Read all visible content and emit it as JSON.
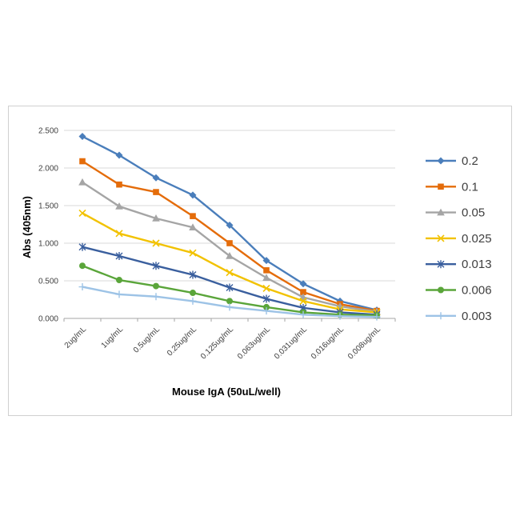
{
  "chart_data": {
    "type": "line",
    "title": "",
    "xlabel": "Mouse IgA (50uL/well)",
    "ylabel": "Abs (405nm)",
    "ylim": [
      0,
      2.5
    ],
    "yticks": [
      "0.000",
      "0.500",
      "1.000",
      "1.500",
      "2.000",
      "2.500"
    ],
    "grid": true,
    "legend_position": "right",
    "categories": [
      "2ug/mL",
      "1ug/mL",
      "0.5ug/mL",
      "0.25ug/mL",
      "0.125ug/mL",
      "0.063ug/mL",
      "0.031ug/mL",
      "0.016ug/mL",
      "0.008ug/mL"
    ],
    "series": [
      {
        "name": "0.2",
        "color": "#4a7ebb",
        "marker": "diamond",
        "values": [
          2.42,
          2.17,
          1.87,
          1.64,
          1.24,
          0.77,
          0.46,
          0.23,
          0.11
        ]
      },
      {
        "name": "0.1",
        "color": "#e46c0a",
        "marker": "square",
        "values": [
          2.09,
          1.78,
          1.68,
          1.36,
          1.0,
          0.64,
          0.35,
          0.19,
          0.1
        ]
      },
      {
        "name": "0.05",
        "color": "#a5a5a5",
        "marker": "triangle",
        "values": [
          1.81,
          1.49,
          1.33,
          1.21,
          0.83,
          0.54,
          0.28,
          0.16,
          0.09
        ]
      },
      {
        "name": "0.025",
        "color": "#f2c200",
        "marker": "x",
        "values": [
          1.4,
          1.13,
          1.0,
          0.87,
          0.61,
          0.4,
          0.23,
          0.12,
          0.08
        ]
      },
      {
        "name": "0.013",
        "color": "#3a5f9e",
        "marker": "star",
        "values": [
          0.95,
          0.83,
          0.7,
          0.58,
          0.41,
          0.26,
          0.14,
          0.08,
          0.05
        ]
      },
      {
        "name": "0.006",
        "color": "#5aa53a",
        "marker": "circle",
        "values": [
          0.7,
          0.51,
          0.43,
          0.34,
          0.23,
          0.15,
          0.08,
          0.05,
          0.04
        ]
      },
      {
        "name": "0.003",
        "color": "#9dc3e6",
        "marker": "plus",
        "values": [
          0.42,
          0.32,
          0.29,
          0.23,
          0.15,
          0.1,
          0.05,
          0.03,
          0.02
        ]
      }
    ]
  }
}
